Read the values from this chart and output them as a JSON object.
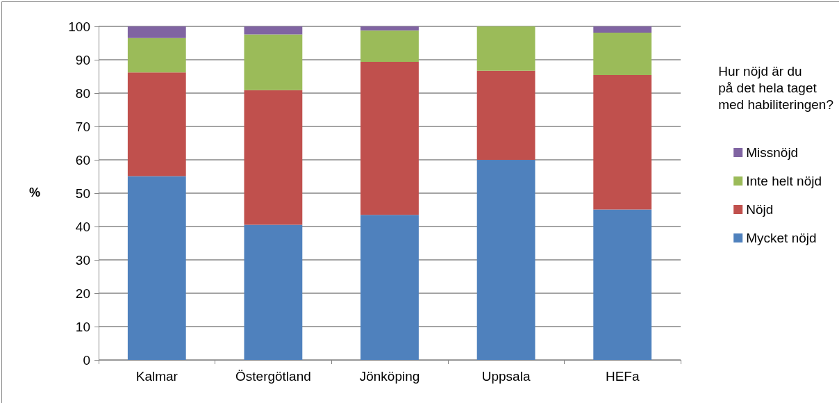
{
  "chart_data": {
    "type": "bar",
    "stacked": true,
    "ylabel": "%",
    "legend_title": "Hur nöjd är du\npå det hela taget\nmed habiliteringen?",
    "categories": [
      "Kalmar",
      "Östergötland",
      "Jönköping",
      "Uppsala",
      "HEFa"
    ],
    "series": [
      {
        "name": "Mycket nöjd",
        "color": "#4f81bd",
        "values": [
          55.1,
          40.5,
          43.5,
          60,
          45.1
        ]
      },
      {
        "name": "Nöjd",
        "color": "#c0504d",
        "values": [
          31.1,
          40.4,
          45.9,
          26.7,
          40.3
        ]
      },
      {
        "name": "Inte helt nöjd",
        "color": "#9bbb59",
        "values": [
          10.3,
          16.7,
          9.4,
          13.3,
          12.7
        ]
      },
      {
        "name": "Missnöjd",
        "color": "#8064a2",
        "values": [
          3.5,
          2.4,
          1.2,
          0,
          1.9
        ]
      }
    ],
    "ylim": [
      0,
      100
    ],
    "yticks": [
      0,
      10,
      20,
      30,
      40,
      50,
      60,
      70,
      80,
      90,
      100
    ],
    "grid": "y",
    "legend": "right"
  }
}
